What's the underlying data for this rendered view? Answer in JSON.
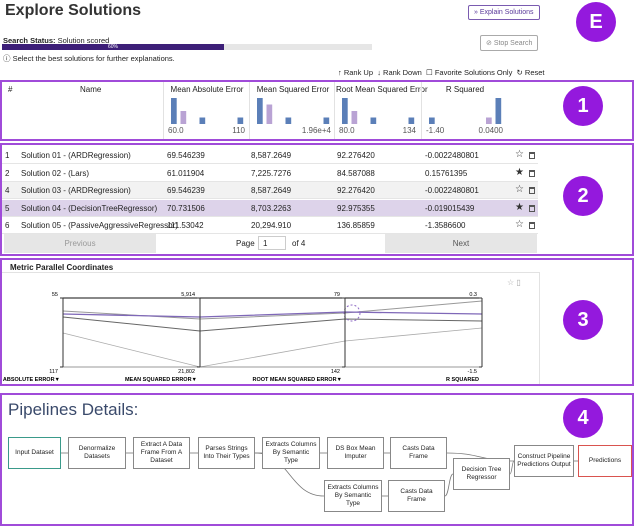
{
  "header": {
    "title": "Explore Solutions",
    "explain_button": "» Explain Solutions",
    "badge": "E"
  },
  "search": {
    "label": "Search Status:",
    "status": "Solution scored",
    "progress": {
      "value": 60,
      "label": "60%"
    },
    "stop_button": "Stop Search",
    "hint": "Select the best solutions for further explanations."
  },
  "toolbar": {
    "rank_up": "Rank Up",
    "rank_down": "Rank Down",
    "favorites_only": "Favorite Solutions Only",
    "reset": "Reset"
  },
  "table": {
    "index_header": "#",
    "name_header": "Name",
    "bar_color": "#5b7fb8",
    "highlight_color": "#b9a3d4",
    "metric_columns": [
      {
        "name": "Mean Absolute Error",
        "histogram": [
          4,
          2,
          0,
          1,
          0,
          0,
          0,
          1
        ],
        "highlight": 1,
        "axis_min": "60.0",
        "axis_max": "110"
      },
      {
        "name": "Mean Squared Error",
        "histogram": [
          4,
          3,
          0,
          1,
          0,
          0,
          0,
          1
        ],
        "highlight": 1,
        "axis_max": "1.96e+4"
      },
      {
        "name": "Root Mean Squared Error",
        "histogram": [
          4,
          2,
          0,
          1,
          0,
          0,
          0,
          1
        ],
        "highlight": 1,
        "axis_min": "80.0",
        "axis_max": "134"
      },
      {
        "name": "R Squared",
        "histogram": [
          1,
          0,
          0,
          0,
          0,
          0,
          1,
          4
        ],
        "highlight": 6,
        "axis_min": "-1.40",
        "axis_max": "0.0400"
      }
    ],
    "rows": [
      {
        "cells": [
          "1",
          "Solution 01 - (ARDRegression)",
          "69.546239",
          "8,587.2649",
          "92.276420",
          "-0.0022480801"
        ],
        "favorite": false,
        "selected": false
      },
      {
        "cells": [
          "2",
          "Solution 02 - (Lars)",
          "61.011904",
          "7,225.7276",
          "84.587088",
          "0.15761395"
        ],
        "favorite": true,
        "selected": false
      },
      {
        "cells": [
          "4",
          "Solution 03 - (ARDRegression)",
          "69.546239",
          "8,587.2649",
          "92.276420",
          "-0.0022480801"
        ],
        "favorite": false,
        "selected": false
      },
      {
        "cells": [
          "5",
          "Solution 04 - (DecisionTreeRegressor)",
          "70.731506",
          "8,703.2263",
          "92.975355",
          "-0.019015439"
        ],
        "favorite": true,
        "selected": true
      },
      {
        "cells": [
          "6",
          "Solution 05 - (PassiveAggressiveRegressor)",
          "111.53042",
          "20,294.910",
          "136.85859",
          "-1.3586600"
        ],
        "favorite": false,
        "selected": false
      }
    ]
  },
  "pagination": {
    "previous": "Previous",
    "page_label": "Page",
    "page": "1",
    "of": "of 4",
    "next": "Next"
  },
  "parallel": {
    "title": "Metric Parallel Coordinates",
    "axes": [
      {
        "name": "MEAN ABSOLUTE ERROR▼",
        "top": 55,
        "bottom": 117
      },
      {
        "name": "MEAN SQUARED ERROR▼",
        "top": {
          "value": 5914,
          "label": "5,914"
        },
        "bottom": {
          "value": 21802,
          "label": "21,802"
        }
      },
      {
        "name": "ROOT MEAN SQUARED ERROR▼",
        "top": 79,
        "bottom": 142
      },
      {
        "name": "R SQUARED",
        "top": 0.3,
        "bottom": -1.5
      }
    ]
  },
  "pipelines": {
    "title": "Pipelines Details:",
    "nodes": [
      {
        "label": "Input Dataset"
      },
      {
        "label": "Denormalize Datasets"
      },
      {
        "label": "Extract A Data Frame From A Dataset"
      },
      {
        "label": "Parses Strings Into Their Types"
      },
      {
        "label": "Extracts Columns By Semantic Type"
      },
      {
        "label": "DS Box Mean Imputer"
      },
      {
        "label": "Casts Data Frame"
      },
      {
        "label": "Extracts Columns By Semantic Type"
      },
      {
        "label": "Casts Data Frame"
      },
      {
        "label": "Decision Tree Regressor"
      },
      {
        "label": "Construct Pipeline Predictions Output"
      },
      {
        "label": "Predictions"
      }
    ]
  },
  "badges": [
    "1",
    "2",
    "3",
    "4"
  ]
}
